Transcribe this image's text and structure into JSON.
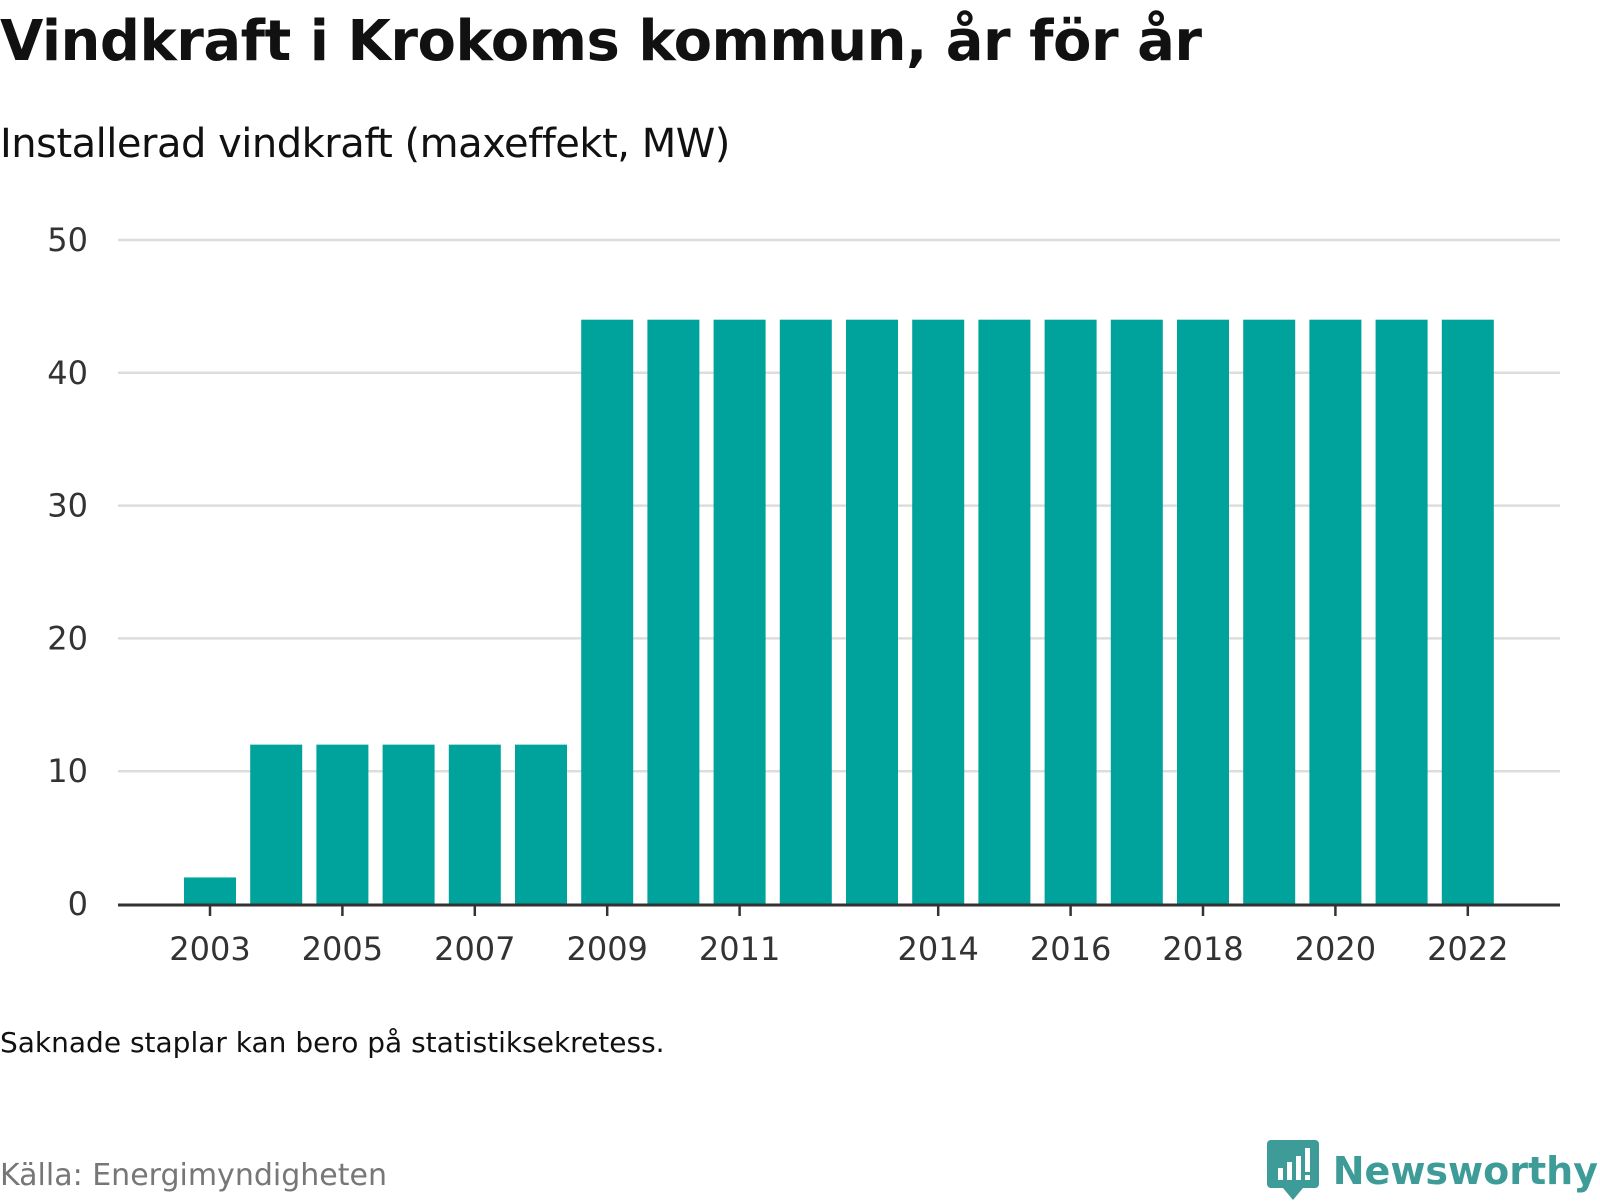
{
  "header": {
    "title": "Vindkraft i Krokoms kommun, år för år",
    "subtitle": "Installerad vindkraft (maxeffekt, MW)"
  },
  "footer": {
    "note": "Saknade staplar kan bero på statistiksekretess.",
    "source": "Källa: Energimyndigheten",
    "brand": "Newsworthy"
  },
  "colors": {
    "bar": "#00a39b",
    "grid": "#dddddd",
    "axis": "#333333",
    "brand": "#3e9c98"
  },
  "chart_data": {
    "type": "bar",
    "title": "Vindkraft i Krokoms kommun, år för år",
    "subtitle": "Installerad vindkraft (maxeffekt, MW)",
    "xlabel": "",
    "ylabel": "",
    "categories": [
      "2003",
      "2004",
      "2005",
      "2006",
      "2007",
      "2008",
      "2009",
      "2010",
      "2011",
      "2012",
      "2013",
      "2014",
      "2015",
      "2016",
      "2017",
      "2018",
      "2019",
      "2020",
      "2021",
      "2022"
    ],
    "values": [
      2,
      12,
      12,
      12,
      12,
      12,
      44,
      44,
      44,
      44,
      44,
      44,
      44,
      44,
      44,
      44,
      44,
      44,
      44,
      44
    ],
    "x_tick_labels": [
      "2003",
      "2005",
      "2007",
      "2009",
      "2011",
      "2014",
      "2016",
      "2018",
      "2020",
      "2022"
    ],
    "y_ticks": [
      0,
      10,
      20,
      30,
      40,
      50
    ],
    "ylim": [
      0,
      50
    ],
    "grid": true
  }
}
